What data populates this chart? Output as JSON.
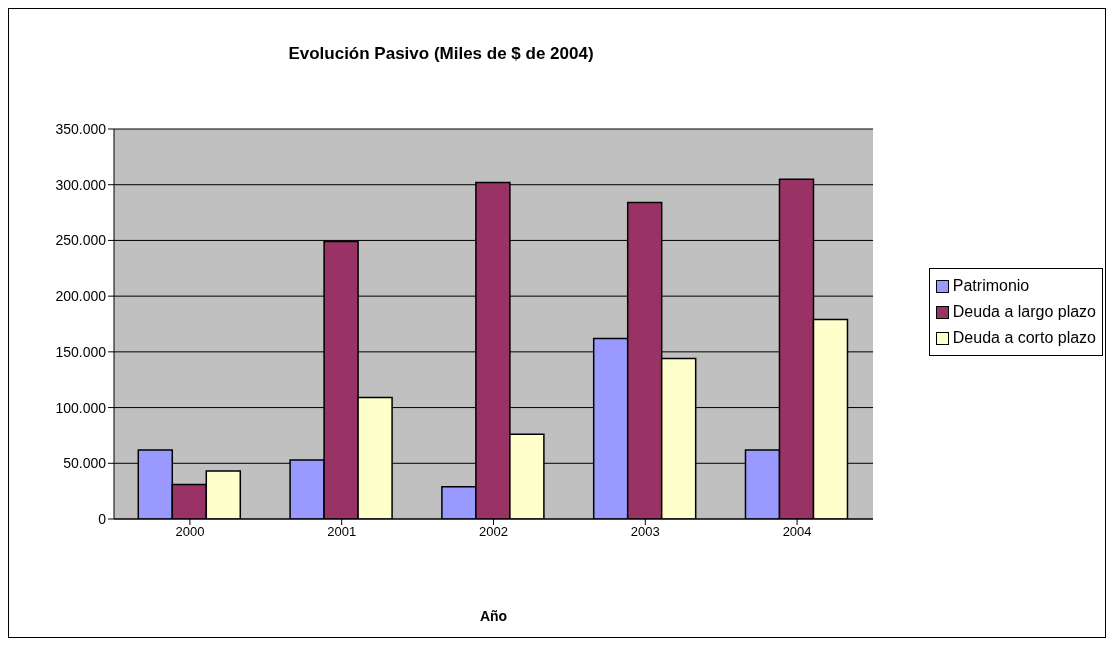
{
  "chart_data": {
    "type": "bar",
    "title": "Evolución Pasivo (Miles de $ de 2004)",
    "xlabel": "Año",
    "categories": [
      "2000",
      "2001",
      "2002",
      "2003",
      "2004"
    ],
    "series": [
      {
        "name": "Patrimonio",
        "color": "#9999ff",
        "values": [
          62000,
          53000,
          29000,
          162000,
          62000
        ]
      },
      {
        "name": "Deuda a largo plazo",
        "color": "#993366",
        "values": [
          31000,
          249000,
          302000,
          284000,
          305000
        ]
      },
      {
        "name": "Deuda a corto plazo",
        "color": "#ffffcc",
        "values": [
          43000,
          109000,
          76000,
          144000,
          179000
        ]
      }
    ],
    "ylim": [
      0,
      350000
    ],
    "yticks": [
      0,
      {
        "value": 50000,
        "label": "50.000"
      },
      {
        "value": 100000,
        "label": "100.000"
      },
      {
        "value": 150000,
        "label": "150.000"
      },
      {
        "value": 200000,
        "label": "200.000"
      },
      {
        "value": 250000,
        "label": "250.000"
      },
      {
        "value": 300000,
        "label": "300.000"
      },
      {
        "value": 350000,
        "label": "350.000"
      }
    ],
    "grid": "y",
    "legend": "right"
  }
}
